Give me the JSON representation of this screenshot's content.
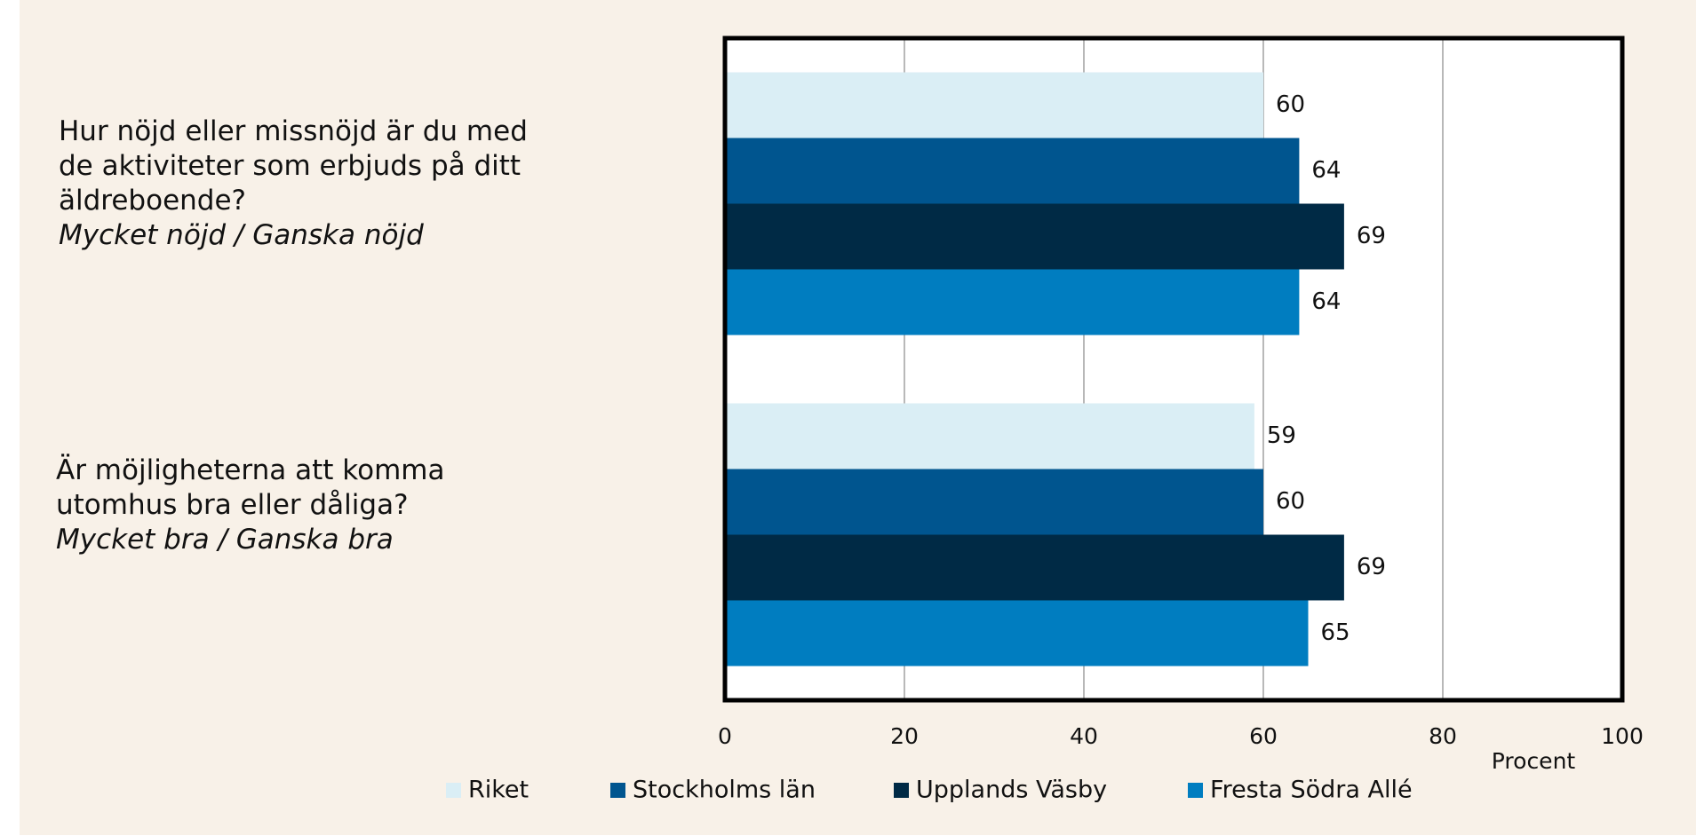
{
  "chart_data": {
    "type": "barh",
    "categories": [
      "Hur nöjd eller missnöjd är du med de aktiviteter som erbjuds på ditt äldreboende?",
      "Är möjligheterna att komma utomhus bra eller dåliga?"
    ],
    "category_subtitles": [
      "Mycket nöjd / Ganska nöjd",
      "Mycket bra / Ganska bra"
    ],
    "series": [
      {
        "name": "Riket",
        "color": "#daeef5",
        "values": [
          60,
          59
        ]
      },
      {
        "name": "Stockholms län",
        "color": "#00558f",
        "values": [
          64,
          60
        ]
      },
      {
        "name": "Upplands Väsby",
        "color": "#002a45",
        "values": [
          69,
          69
        ]
      },
      {
        "name": "Fresta Södra Allé",
        "color": "#007dc0",
        "values": [
          64,
          65
        ]
      }
    ],
    "xlabel": "Procent",
    "xlim": [
      0,
      100
    ],
    "xticks": [
      0,
      20,
      40,
      60,
      80,
      100
    ],
    "grid": true,
    "legend": "bottom"
  }
}
